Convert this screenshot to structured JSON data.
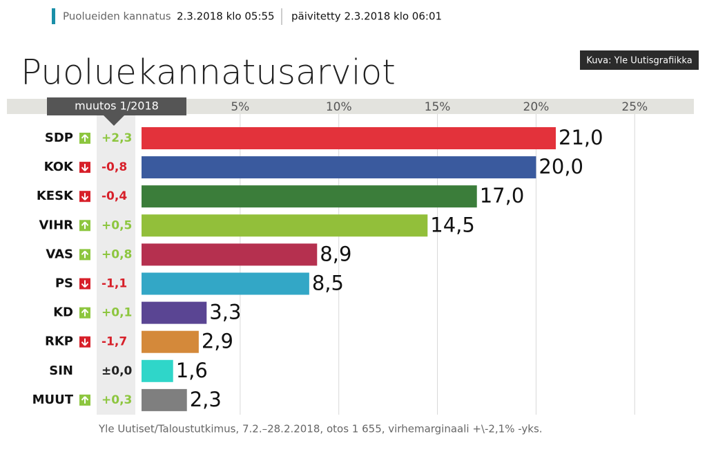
{
  "header": {
    "section": "Puolueiden kannatus",
    "published": "2.3.2018 klo 05:55",
    "updated": "päivitetty 2.3.2018 klo 06:01",
    "credit": "Kuva: Yle Uutisgrafiikka"
  },
  "chart_data": {
    "type": "bar",
    "orientation": "horizontal",
    "title": "Puoluekannatusarviot",
    "change_header": "muutos 1/2018",
    "categories": [
      "SDP",
      "KOK",
      "KESK",
      "VIHR",
      "VAS",
      "PS",
      "KD",
      "RKP",
      "SIN",
      "MUUT"
    ],
    "changes": [
      "+2,3",
      "-0,8",
      "-0,4",
      "+0,5",
      "+0,8",
      "-1,1",
      "+0,1",
      "-1,7",
      "±0,0",
      "+0,3"
    ],
    "values": [
      21.0,
      20.0,
      17.0,
      14.5,
      8.9,
      8.5,
      3.3,
      2.9,
      1.6,
      2.3
    ],
    "value_labels": [
      "21,0",
      "20,0",
      "17,0",
      "14,5",
      "8,9",
      "8,5",
      "3,3",
      "2,9",
      "1,6",
      "2,3"
    ],
    "colors": [
      "#e3323b",
      "#3a5a9e",
      "#3b7d3a",
      "#92bf3a",
      "#b5304f",
      "#33a7c6",
      "#5a4593",
      "#d4893a",
      "#2fd6c9",
      "#7f7f7f"
    ],
    "xlim": [
      0,
      28
    ],
    "xticks": [
      {
        "value": 5,
        "label": "5%"
      },
      {
        "value": 10,
        "label": "10%"
      },
      {
        "value": 15,
        "label": "15%"
      },
      {
        "value": 20,
        "label": "20%"
      },
      {
        "value": 25,
        "label": "25%"
      }
    ],
    "grid": true,
    "source": "Yle Uutiset/Taloustutkimus, 7.2.–28.2.2018, otos 1 655, virhemarginaali +\\-2,1% -yks."
  }
}
